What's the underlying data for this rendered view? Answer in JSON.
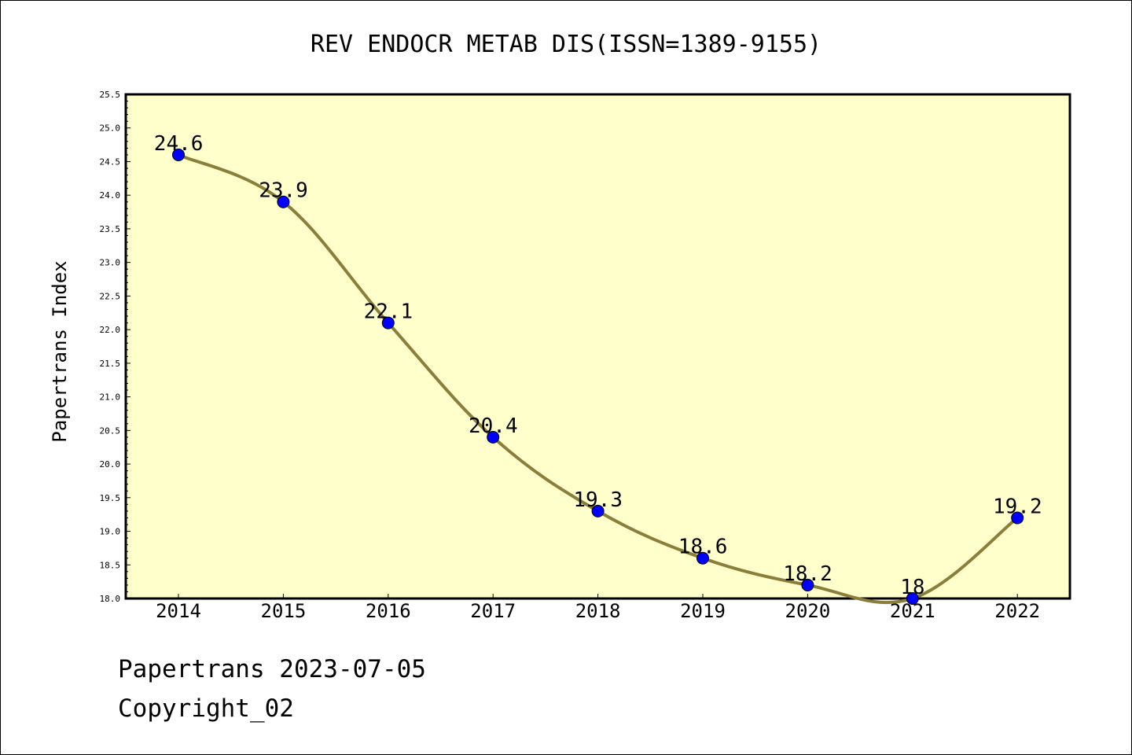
{
  "chart_data": {
    "type": "line",
    "title": "REV ENDOCR METAB DIS(ISSN=1389-9155)",
    "ylabel": "Papertrans Index",
    "xlabel": "",
    "categories": [
      "2014",
      "2015",
      "2016",
      "2017",
      "2018",
      "2019",
      "2020",
      "2021",
      "2022"
    ],
    "values": [
      24.6,
      23.9,
      22.1,
      20.4,
      19.3,
      18.6,
      18.2,
      18.0,
      19.2
    ],
    "data_labels": [
      "24.6",
      "23.9",
      "22.1",
      "20.4",
      "19.3",
      "18.6",
      "18.2",
      "18",
      "19.2"
    ],
    "ylim": [
      18.0,
      25.5
    ],
    "yticks": [
      "18.0",
      "18.5",
      "19.0",
      "19.5",
      "20.0",
      "20.5",
      "21.0",
      "21.5",
      "22.0",
      "22.5",
      "23.0",
      "23.5",
      "24.0",
      "24.5",
      "25.0",
      "25.5"
    ],
    "grid": false,
    "colors": {
      "plot_background": "#ffffcc",
      "line": "#8b7d3a",
      "marker": "#0000ff"
    }
  },
  "footer": {
    "line1": "Papertrans 2023-07-05",
    "line2": "Copyright_02"
  }
}
